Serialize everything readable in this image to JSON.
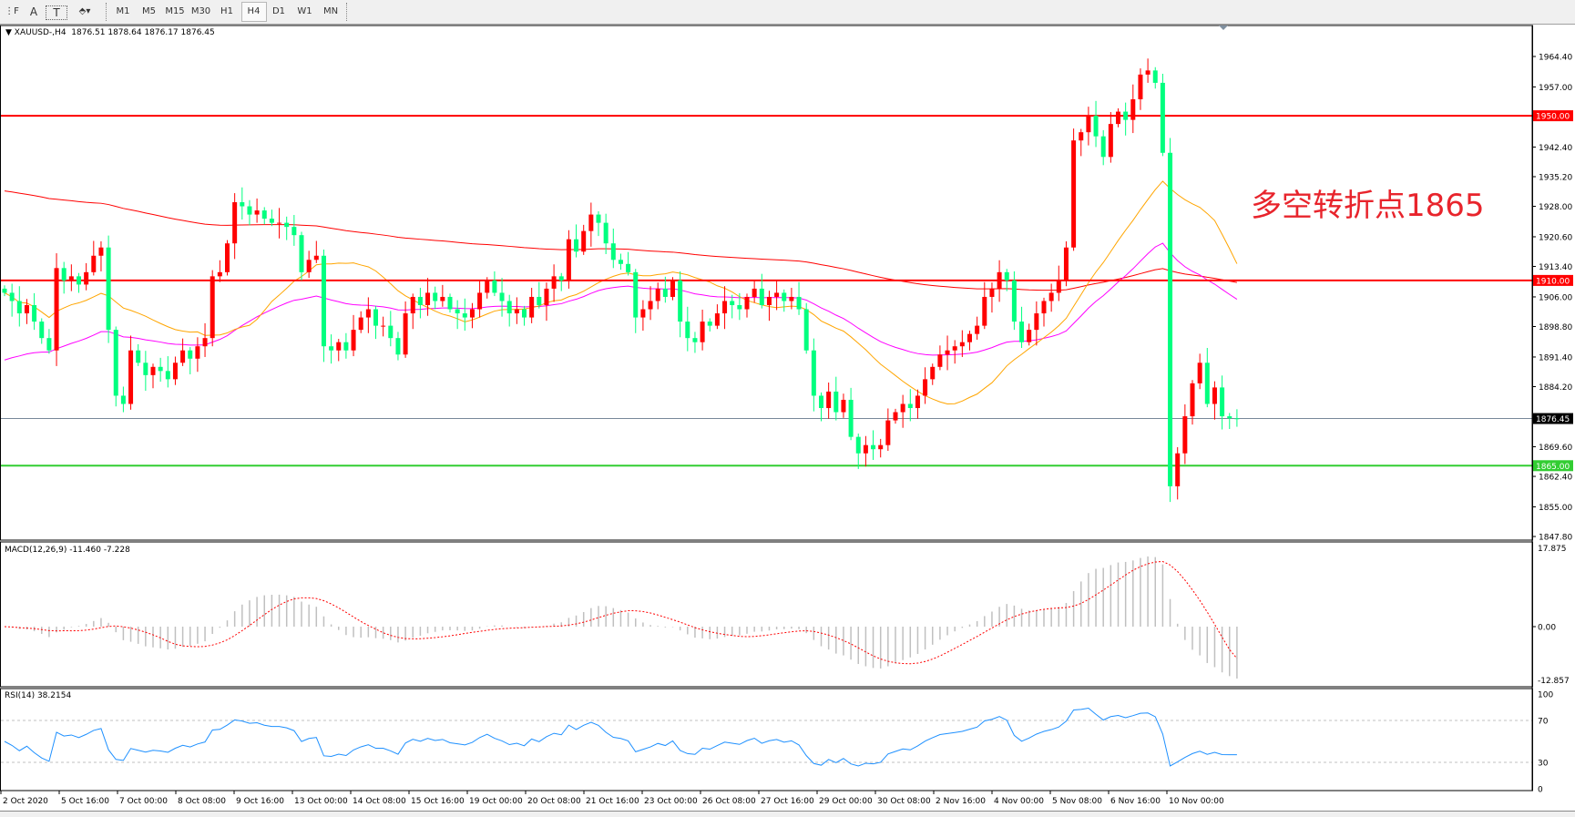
{
  "toolbar": {
    "tools": [
      {
        "name": "periodicity-icon",
        "glyph": "⋮F"
      },
      {
        "name": "text-icon",
        "glyph": "A"
      },
      {
        "name": "text-label-icon",
        "glyph": "T"
      },
      {
        "name": "arrows-icon",
        "glyph": "⬘▾"
      }
    ],
    "timeframes": [
      "M1",
      "M5",
      "M15",
      "M30",
      "H1",
      "H4",
      "D1",
      "W1",
      "MN"
    ],
    "active_timeframe": "H4"
  },
  "header": {
    "symbol": "XAUUSD-,H4",
    "ohlc": "1876.51 1878.64 1876.17 1876.45"
  },
  "annotation": "多空转折点1865",
  "colors": {
    "bull": "#ff0000",
    "bear": "#00ff7f",
    "resistance": "#ff0000",
    "support": "#32cd32",
    "price_line": "#778899",
    "ma_fast": "#ffa500",
    "ma_mid": "#ff00ff",
    "ma_slow": "#ff0000",
    "macd_hist": "#c0c0c0",
    "macd_signal": "#ff0000",
    "rsi": "#1e90ff"
  },
  "chart_data": [
    {
      "type": "candlestick",
      "title": "XAUUSD-,H4",
      "ylim": [
        1847.8,
        1970.5
      ],
      "y_ticks": [
        "1964.40",
        "1957.00",
        "1942.40",
        "1935.20",
        "1928.00",
        "1920.60",
        "1913.40",
        "1906.00",
        "1898.80",
        "1891.40",
        "1884.20",
        "1869.60",
        "1862.40",
        "1855.00",
        "1847.80"
      ],
      "x_ticks": [
        "2 Oct 2020",
        "5 Oct 16:00",
        "7 Oct 00:00",
        "8 Oct 08:00",
        "9 Oct 16:00",
        "13 Oct 00:00",
        "14 Oct 08:00",
        "15 Oct 16:00",
        "19 Oct 00:00",
        "20 Oct 08:00",
        "21 Oct 16:00",
        "23 Oct 00:00",
        "26 Oct 08:00",
        "27 Oct 16:00",
        "29 Oct 00:00",
        "30 Oct 08:00",
        "2 Nov 16:00",
        "4 Nov 00:00",
        "5 Nov 08:00",
        "6 Nov 16:00",
        "10 Nov 00:00"
      ],
      "closes": [
        1907,
        1905,
        1902,
        1904,
        1900,
        1896,
        1893,
        1913,
        1910,
        1911,
        1909,
        1912,
        1916,
        1918,
        1898,
        1882,
        1880,
        1893,
        1890,
        1887,
        1889,
        1888,
        1886,
        1890,
        1893,
        1891,
        1894,
        1896,
        1911,
        1912,
        1919,
        1929,
        1928,
        1926,
        1927,
        1925,
        1924,
        1924,
        1923,
        1921,
        1912,
        1915,
        1916,
        1894,
        1893,
        1895,
        1893,
        1898,
        1901,
        1903,
        1899,
        1899,
        1896,
        1892,
        1902,
        1906,
        1904,
        1907,
        1905,
        1906,
        1903,
        1902,
        1901,
        1903,
        1907,
        1910,
        1907,
        1905,
        1902,
        1903,
        1901,
        1906,
        1904,
        1908,
        1911,
        1910,
        1920,
        1917,
        1922,
        1926,
        1924,
        1919,
        1915,
        1914,
        1912,
        1901,
        1903,
        1905,
        1908,
        1906,
        1910,
        1900,
        1896,
        1895,
        1900,
        1899,
        1902,
        1905,
        1904,
        1903,
        1906,
        1908,
        1904,
        1906,
        1907,
        1905,
        1906,
        1903,
        1893,
        1882,
        1879,
        1883,
        1878,
        1881,
        1872,
        1868,
        1870,
        1869,
        1870,
        1876,
        1878,
        1880,
        1879,
        1882,
        1886,
        1889,
        1892,
        1893,
        1894,
        1895,
        1897,
        1899,
        1906,
        1908,
        1912,
        1910,
        1900,
        1895,
        1898,
        1902,
        1905,
        1907,
        1910,
        1918,
        1944,
        1946,
        1950,
        1945,
        1940,
        1948,
        1951,
        1949,
        1954,
        1960,
        1961,
        1958,
        1941,
        1860,
        1868,
        1877,
        1885,
        1890,
        1880,
        1884,
        1877,
        1876.51,
        1876.45
      ],
      "horizontal_levels": [
        {
          "value": 1950.0,
          "label": "1950.00",
          "role": "resistance"
        },
        {
          "value": 1910.0,
          "label": "1910.00",
          "role": "resistance"
        },
        {
          "value": 1865.0,
          "label": "1865.00",
          "role": "support"
        },
        {
          "value": 1876.45,
          "label": "1876.45",
          "role": "price_line"
        }
      ]
    },
    {
      "type": "bar",
      "title": "MACD(12,26,9) -11.460 -7.228",
      "ylim": [
        -12.857,
        17.875
      ],
      "y_ticks": [
        "17.875",
        "0.00",
        "-12.857"
      ]
    },
    {
      "type": "line",
      "title": "RSI(14) 38.2154",
      "ylim": [
        0,
        100
      ],
      "y_ticks": [
        "100",
        "70",
        "30",
        "0"
      ],
      "levels": [
        70,
        30
      ]
    }
  ]
}
